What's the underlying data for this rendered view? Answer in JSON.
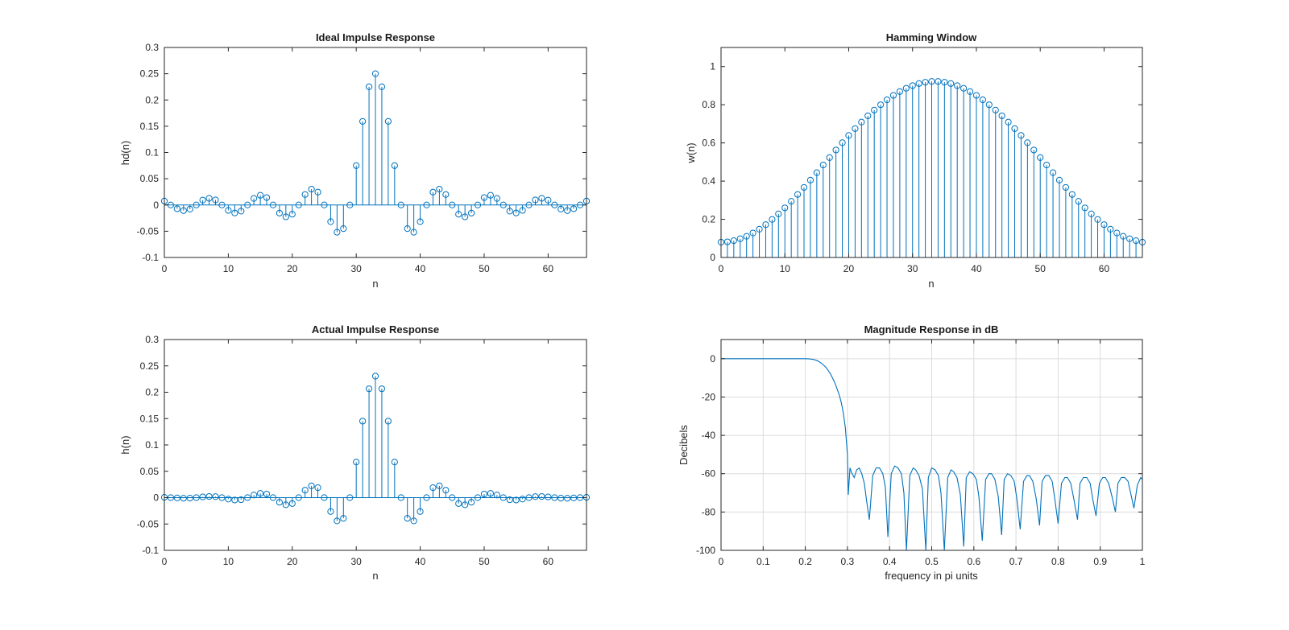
{
  "figure": {
    "background": "#ffffff",
    "series_color": "#0072BD",
    "axis_color": "#262626",
    "grid_color": "#dcdcdc"
  },
  "chart_data": [
    {
      "id": "ideal",
      "type": "stem",
      "title": "Ideal Impulse Response",
      "xlabel": "n",
      "ylabel": "hd(n)",
      "xlim": [
        0,
        66
      ],
      "ylim": [
        -0.1,
        0.3
      ],
      "xticks": [
        0,
        10,
        20,
        30,
        40,
        50,
        60
      ],
      "yticks": [
        -0.1,
        -0.05,
        0,
        0.05,
        0.1,
        0.15,
        0.2,
        0.25,
        0.3
      ],
      "ytick_labels": [
        "-0.1",
        "-0.05",
        "0",
        "0.05",
        "0.1",
        "0.15",
        "0.2",
        "0.25",
        "0.3"
      ],
      "xtick_labels": [
        "0",
        "10",
        "20",
        "30",
        "40",
        "50",
        "60"
      ],
      "grid": false,
      "x": [
        0,
        1,
        2,
        3,
        4,
        5,
        6,
        7,
        8,
        9,
        10,
        11,
        12,
        13,
        14,
        15,
        16,
        17,
        18,
        19,
        20,
        21,
        22,
        23,
        24,
        25,
        26,
        27,
        28,
        29,
        30,
        31,
        32,
        33,
        34,
        35,
        36,
        37,
        38,
        39,
        40,
        41,
        42,
        43,
        44,
        45,
        46,
        47,
        48,
        49,
        50,
        51,
        52,
        53,
        54,
        55,
        56,
        57,
        58,
        59,
        60,
        61,
        62,
        63,
        64,
        65,
        66
      ],
      "values": [
        0.0075,
        0,
        -0.0072,
        -0.0107,
        -0.0079,
        0,
        0.0092,
        0.0127,
        0.0096,
        0,
        -0.0103,
        -0.0152,
        -0.0117,
        0,
        0.0124,
        0.0184,
        0.0141,
        0,
        -0.0155,
        -0.0225,
        -0.0176,
        0,
        0.0199,
        0.0302,
        0.0245,
        0,
        -0.0318,
        -0.0519,
        -0.045,
        0,
        0.075,
        0.1592,
        0.2251,
        0.25,
        0.2251,
        0.1592,
        0.075,
        0,
        -0.045,
        -0.0519,
        -0.0318,
        0,
        0.0245,
        0.0302,
        0.0199,
        0,
        -0.0176,
        -0.0225,
        -0.0155,
        0,
        0.0141,
        0.0184,
        0.0124,
        0,
        -0.0117,
        -0.0152,
        -0.0103,
        0,
        0.0096,
        0.0127,
        0.0092,
        0,
        -0.0079,
        -0.0107,
        -0.0072,
        0,
        0.0075
      ]
    },
    {
      "id": "hamming",
      "type": "stem",
      "title": "Hamming Window",
      "xlabel": "n",
      "ylabel": "w(n)",
      "xlim": [
        0,
        66
      ],
      "ylim": [
        0,
        1.1
      ],
      "xticks": [
        0,
        10,
        20,
        30,
        40,
        50,
        60
      ],
      "yticks": [
        0,
        0.2,
        0.4,
        0.6,
        0.8,
        1
      ],
      "ytick_labels": [
        "0",
        "0.2",
        "0.4",
        "0.6",
        "0.8",
        "1"
      ],
      "xtick_labels": [
        "0",
        "10",
        "20",
        "30",
        "40",
        "50",
        "60"
      ],
      "grid": false,
      "x": [
        0,
        1,
        2,
        3,
        4,
        5,
        6,
        7,
        8,
        9,
        10,
        11,
        12,
        13,
        14,
        15,
        16,
        17,
        18,
        19,
        20,
        21,
        22,
        23,
        24,
        25,
        26,
        27,
        28,
        29,
        30,
        31,
        32,
        33,
        34,
        35,
        36,
        37,
        38,
        39,
        40,
        41,
        42,
        43,
        44,
        45,
        46,
        47,
        48,
        49,
        50,
        51,
        52,
        53,
        54,
        55,
        56,
        57,
        58,
        59,
        60,
        61,
        62,
        63,
        64,
        65,
        66
      ],
      "values": [
        0.08,
        0.082,
        0.088,
        0.098,
        0.111,
        0.128,
        0.148,
        0.172,
        0.199,
        0.228,
        0.26,
        0.294,
        0.33,
        0.367,
        0.405,
        0.444,
        0.484,
        0.523,
        0.563,
        0.601,
        0.639,
        0.675,
        0.709,
        0.742,
        0.772,
        0.8,
        0.826,
        0.849,
        0.869,
        0.886,
        0.9,
        0.911,
        0.918,
        0.922,
        0.922,
        0.918,
        0.911,
        0.9,
        0.886,
        0.869,
        0.849,
        0.826,
        0.8,
        0.772,
        0.742,
        0.709,
        0.675,
        0.639,
        0.601,
        0.563,
        0.523,
        0.484,
        0.444,
        0.405,
        0.367,
        0.33,
        0.294,
        0.26,
        0.228,
        0.199,
        0.172,
        0.148,
        0.128,
        0.111,
        0.098,
        0.088,
        0.08
      ]
    },
    {
      "id": "actual",
      "type": "stem",
      "title": "Actual Impulse Response",
      "xlabel": "n",
      "ylabel": "h(n)",
      "xlim": [
        0,
        66
      ],
      "ylim": [
        -0.1,
        0.3
      ],
      "xticks": [
        0,
        10,
        20,
        30,
        40,
        50,
        60
      ],
      "yticks": [
        -0.1,
        -0.05,
        0,
        0.05,
        0.1,
        0.15,
        0.2,
        0.25,
        0.3
      ],
      "ytick_labels": [
        "-0.1",
        "-0.05",
        "0",
        "0.05",
        "0.1",
        "0.15",
        "0.2",
        "0.25",
        "0.3"
      ],
      "xtick_labels": [
        "0",
        "10",
        "20",
        "30",
        "40",
        "50",
        "60"
      ],
      "grid": false,
      "x": [
        0,
        1,
        2,
        3,
        4,
        5,
        6,
        7,
        8,
        9,
        10,
        11,
        12,
        13,
        14,
        15,
        16,
        17,
        18,
        19,
        20,
        21,
        22,
        23,
        24,
        25,
        26,
        27,
        28,
        29,
        30,
        31,
        32,
        33,
        34,
        35,
        36,
        37,
        38,
        39,
        40,
        41,
        42,
        43,
        44,
        45,
        46,
        47,
        48,
        49,
        50,
        51,
        52,
        53,
        54,
        55,
        56,
        57,
        58,
        59,
        60,
        61,
        62,
        63,
        64,
        65,
        66
      ],
      "values": [
        0.0006,
        0,
        -0.0006,
        -0.0011,
        -0.0009,
        0,
        0.0014,
        0.0022,
        0.0019,
        0,
        -0.0027,
        -0.0045,
        -0.0039,
        0,
        0.005,
        0.0081,
        0.0068,
        0,
        -0.0087,
        -0.0135,
        -0.0112,
        0,
        0.0141,
        0.0224,
        0.0189,
        0,
        -0.0263,
        -0.0441,
        -0.0392,
        0,
        0.0675,
        0.1451,
        0.2066,
        0.2305,
        0.2066,
        0.1451,
        0.0675,
        0,
        -0.0392,
        -0.0441,
        -0.0263,
        0,
        0.0189,
        0.0224,
        0.0141,
        0,
        -0.0112,
        -0.0135,
        -0.0087,
        0,
        0.0068,
        0.0081,
        0.005,
        0,
        -0.0039,
        -0.0045,
        -0.0027,
        0,
        0.0019,
        0.0022,
        0.0014,
        0,
        -0.0009,
        -0.0011,
        -0.0006,
        0,
        0.0006
      ]
    },
    {
      "id": "magnitude",
      "type": "line",
      "title": "Magnitude Response in dB",
      "xlabel": "frequency in pi units",
      "ylabel": "Decibels",
      "xlim": [
        0,
        1
      ],
      "ylim": [
        -100,
        10
      ],
      "xticks": [
        0,
        0.1,
        0.2,
        0.3,
        0.4,
        0.5,
        0.6,
        0.7,
        0.8,
        0.9,
        1
      ],
      "xtick_labels": [
        "0",
        "0.1",
        "0.2",
        "0.3",
        "0.4",
        "0.5",
        "0.6",
        "0.7",
        "0.8",
        "0.9",
        "1"
      ],
      "yticks": [
        -100,
        -80,
        -60,
        -40,
        -20,
        0
      ],
      "ytick_labels": [
        "-100",
        "-80",
        "-60",
        "-40",
        "-20",
        "0"
      ],
      "grid": true,
      "x": [
        0,
        0.05,
        0.1,
        0.15,
        0.2,
        0.21,
        0.22,
        0.23,
        0.24,
        0.25,
        0.26,
        0.27,
        0.28,
        0.285,
        0.29,
        0.295,
        0.3,
        0.302,
        0.306,
        0.31,
        0.316,
        0.322,
        0.328,
        0.334,
        0.34,
        0.346,
        0.352,
        0.36,
        0.368,
        0.376,
        0.384,
        0.39,
        0.396,
        0.404,
        0.412,
        0.42,
        0.428,
        0.434,
        0.44,
        0.448,
        0.456,
        0.462,
        0.47,
        0.478,
        0.486,
        0.492,
        0.5,
        0.508,
        0.516,
        0.522,
        0.53,
        0.538,
        0.546,
        0.552,
        0.56,
        0.568,
        0.576,
        0.582,
        0.59,
        0.598,
        0.606,
        0.612,
        0.62,
        0.628,
        0.636,
        0.642,
        0.65,
        0.658,
        0.666,
        0.672,
        0.68,
        0.688,
        0.696,
        0.702,
        0.71,
        0.718,
        0.726,
        0.732,
        0.74,
        0.748,
        0.756,
        0.762,
        0.77,
        0.778,
        0.786,
        0.792,
        0.8,
        0.808,
        0.816,
        0.822,
        0.83,
        0.838,
        0.846,
        0.852,
        0.86,
        0.868,
        0.876,
        0.882,
        0.89,
        0.898,
        0.906,
        0.912,
        0.92,
        0.928,
        0.936,
        0.942,
        0.95,
        0.958,
        0.966,
        0.972,
        0.98,
        0.988,
        0.996,
        1
      ],
      "values": [
        0,
        0,
        0,
        0,
        0,
        -0.1,
        -0.4,
        -1.2,
        -2.6,
        -4.8,
        -8.0,
        -12.5,
        -18.5,
        -22.5,
        -28,
        -36,
        -50,
        -71,
        -57,
        -59.5,
        -62,
        -58,
        -57,
        -60,
        -65,
        -75,
        -84,
        -61,
        -57,
        -57,
        -60,
        -67,
        -93,
        -60,
        -56,
        -57,
        -60,
        -70,
        -100,
        -61,
        -57,
        -58,
        -61,
        -68,
        -100,
        -62,
        -57,
        -58,
        -61,
        -70,
        -100,
        -62,
        -58,
        -59,
        -62,
        -71,
        -98,
        -62,
        -59,
        -60,
        -63,
        -72,
        -95,
        -63,
        -60,
        -60,
        -63,
        -72,
        -92,
        -63,
        -60,
        -61,
        -64,
        -73,
        -89,
        -64,
        -61,
        -61,
        -64,
        -73,
        -87,
        -64,
        -61,
        -61,
        -64,
        -73,
        -86,
        -65,
        -62,
        -62,
        -65,
        -74,
        -84,
        -65,
        -62,
        -62,
        -65,
        -73,
        -82,
        -65,
        -62,
        -62,
        -65,
        -72,
        -80,
        -65,
        -62,
        -62,
        -64,
        -70,
        -78,
        -66,
        -62,
        -63
      ]
    }
  ]
}
